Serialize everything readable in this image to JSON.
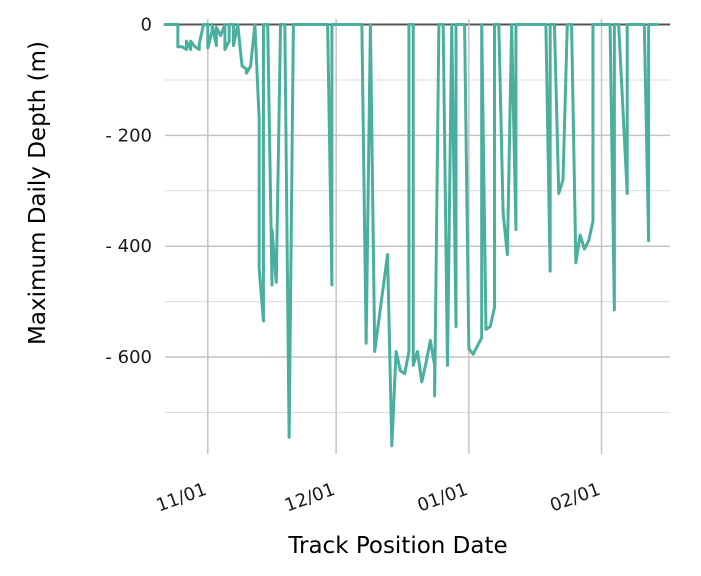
{
  "chart_data": {
    "type": "line",
    "title": "",
    "xlabel": "Track Position Date",
    "ylabel": "Maximum Daily Depth (m)",
    "x_ticks": [
      {
        "date": "2020-11-01",
        "label": "11/01"
      },
      {
        "date": "2020-12-01",
        "label": "12/01"
      },
      {
        "date": "2021-01-01",
        "label": "01/01"
      },
      {
        "date": "2021-02-01",
        "label": "02/01"
      }
    ],
    "y_ticks": [
      {
        "value": 0,
        "label": "0"
      },
      {
        "value": -200,
        "label": "- 200"
      },
      {
        "value": -400,
        "label": "- 400"
      },
      {
        "value": -600,
        "label": "- 600"
      }
    ],
    "xlim": [
      "2020-10-22",
      "2021-02-17"
    ],
    "ylim": [
      -775,
      10
    ],
    "minor_y_gridlines": [
      -100,
      -300,
      -500,
      -700
    ],
    "grid": true,
    "zero_line": true,
    "line_color": "#4aaf9e",
    "series": [
      {
        "points": [
          [
            "2020-10-22",
            0
          ],
          [
            "2020-10-25",
            0
          ],
          [
            "2020-10-25",
            -40
          ],
          [
            "2020-10-26",
            -40
          ],
          [
            "2020-10-27",
            -45
          ],
          [
            "2020-10-27",
            -30
          ],
          [
            "2020-10-28",
            -45
          ],
          [
            "2020-10-28",
            -30
          ],
          [
            "2020-10-29",
            -40
          ],
          [
            "2020-10-30",
            -45
          ],
          [
            "2020-10-30",
            -35
          ],
          [
            "2020-10-31",
            0
          ],
          [
            "2020-11-01",
            0
          ],
          [
            "2020-11-01",
            -42
          ],
          [
            "2020-11-02",
            -12
          ],
          [
            "2020-11-02",
            0
          ],
          [
            "2020-11-03",
            -38
          ],
          [
            "2020-11-03",
            -5
          ],
          [
            "2020-11-04",
            -20
          ],
          [
            "2020-11-05",
            0
          ],
          [
            "2020-11-05",
            -45
          ],
          [
            "2020-11-06",
            -30
          ],
          [
            "2020-11-06",
            0
          ],
          [
            "2020-11-07",
            0
          ],
          [
            "2020-11-07",
            -38
          ],
          [
            "2020-11-08",
            0
          ],
          [
            "2020-11-09",
            -75
          ],
          [
            "2020-11-10",
            -80
          ],
          [
            "2020-11-10",
            -88
          ],
          [
            "2020-11-11",
            -75
          ],
          [
            "2020-11-12",
            0
          ],
          [
            "2020-11-13",
            -170
          ],
          [
            "2020-11-13",
            -350
          ],
          [
            "2020-11-13",
            -440
          ],
          [
            "2020-11-14",
            -535
          ],
          [
            "2020-11-14",
            0
          ],
          [
            "2020-11-15",
            0
          ],
          [
            "2020-11-16",
            -470
          ],
          [
            "2020-11-16",
            -370
          ],
          [
            "2020-11-17",
            -465
          ],
          [
            "2020-11-18",
            0
          ],
          [
            "2020-11-19",
            0
          ],
          [
            "2020-11-20",
            -745
          ],
          [
            "2020-11-21",
            0
          ],
          [
            "2020-11-29",
            0
          ],
          [
            "2020-11-30",
            -470
          ],
          [
            "2020-11-30",
            0
          ],
          [
            "2020-12-07",
            0
          ],
          [
            "2020-12-08",
            -575
          ],
          [
            "2020-12-09",
            0
          ],
          [
            "2020-12-10",
            -590
          ],
          [
            "2020-12-13",
            -415
          ],
          [
            "2020-12-14",
            -760
          ],
          [
            "2020-12-15",
            -590
          ],
          [
            "2020-12-16",
            -625
          ],
          [
            "2020-12-17",
            -630
          ],
          [
            "2020-12-18",
            -590
          ],
          [
            "2020-12-18",
            0
          ],
          [
            "2020-12-19",
            0
          ],
          [
            "2020-12-19",
            -615
          ],
          [
            "2020-12-20",
            -590
          ],
          [
            "2020-12-21",
            -645
          ],
          [
            "2020-12-22",
            -610
          ],
          [
            "2020-12-23",
            -570
          ],
          [
            "2020-12-24",
            -615
          ],
          [
            "2020-12-24",
            -670
          ],
          [
            "2020-12-25",
            0
          ],
          [
            "2020-12-26",
            0
          ],
          [
            "2020-12-27",
            -615
          ],
          [
            "2020-12-28",
            0
          ],
          [
            "2020-12-29",
            -545
          ],
          [
            "2020-12-29",
            0
          ],
          [
            "2020-12-31",
            0
          ],
          [
            "2021-01-01",
            -585
          ],
          [
            "2021-01-02",
            -595
          ],
          [
            "2021-01-04",
            -565
          ],
          [
            "2021-01-04",
            0
          ],
          [
            "2021-01-05",
            -550
          ],
          [
            "2021-01-06",
            -545
          ],
          [
            "2021-01-07",
            -510
          ],
          [
            "2021-01-07",
            0
          ],
          [
            "2021-01-08",
            0
          ],
          [
            "2021-01-09",
            -340
          ],
          [
            "2021-01-10",
            -415
          ],
          [
            "2021-01-11",
            0
          ],
          [
            "2021-01-12",
            -370
          ],
          [
            "2021-01-12",
            0
          ],
          [
            "2021-01-19",
            0
          ],
          [
            "2021-01-20",
            -445
          ],
          [
            "2021-01-20",
            0
          ],
          [
            "2021-01-21",
            0
          ],
          [
            "2021-01-22",
            -305
          ],
          [
            "2021-01-23",
            -280
          ],
          [
            "2021-01-24",
            0
          ],
          [
            "2021-01-25",
            0
          ],
          [
            "2021-01-26",
            -430
          ],
          [
            "2021-01-27",
            -380
          ],
          [
            "2021-01-28",
            -405
          ],
          [
            "2021-01-29",
            -390
          ],
          [
            "2021-01-30",
            -355
          ],
          [
            "2021-01-30",
            0
          ],
          [
            "2021-02-01",
            0
          ],
          [
            "2021-02-03",
            0
          ],
          [
            "2021-02-04",
            -515
          ],
          [
            "2021-02-04",
            0
          ],
          [
            "2021-02-05",
            0
          ],
          [
            "2021-02-07",
            -305
          ],
          [
            "2021-02-07",
            0
          ],
          [
            "2021-02-11",
            0
          ],
          [
            "2021-02-12",
            -390
          ],
          [
            "2021-02-12",
            0
          ],
          [
            "2021-02-14",
            0
          ]
        ]
      }
    ]
  }
}
